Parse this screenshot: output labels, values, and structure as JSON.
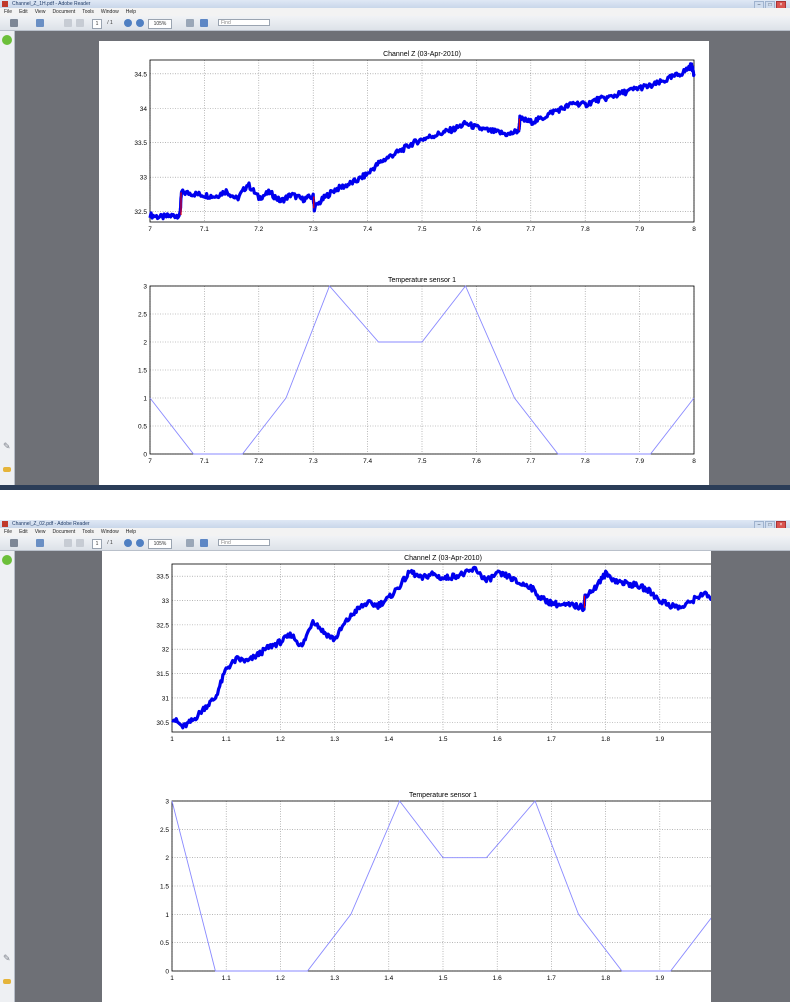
{
  "windows": [
    {
      "title": "Channel_Z_1H.pdf - Adobe Reader",
      "menu": [
        "File",
        "Edit",
        "View",
        "Document",
        "Tools",
        "Window",
        "Help"
      ],
      "toolbar": {
        "page_current": "1",
        "page_total": "/ 1",
        "zoom": "105%",
        "find_placeholder": "Find"
      }
    },
    {
      "title": "Channel_Z_02.pdf - Adobe Reader",
      "menu": [
        "File",
        "Edit",
        "View",
        "Document",
        "Tools",
        "Window",
        "Help"
      ],
      "toolbar": {
        "page_current": "1",
        "page_total": "/ 1",
        "zoom": "105%",
        "find_placeholder": "Find"
      }
    }
  ],
  "colors": {
    "signal": "#0000ee",
    "step": "#ee0000",
    "sensor": "#8a8aff",
    "grid": "#8c8c8c",
    "chrome": "#e6e9ee",
    "doc_bg": "#6e7076"
  },
  "chart_data": [
    {
      "type": "line",
      "title": "Channel Z  (03-Apr-2010)",
      "xlim": [
        7,
        8
      ],
      "ylim": [
        32.35,
        34.7
      ],
      "xticks": [
        "7",
        "7.1",
        "7.2",
        "7.3",
        "7.4",
        "7.5",
        "7.6",
        "7.7",
        "7.8",
        "7.9",
        "8"
      ],
      "yticks": [
        "32.5",
        "33",
        "33.5",
        "34",
        "34.5"
      ],
      "grid": true,
      "series": [
        {
          "x": [
            7.0,
            7.02,
            7.04,
            7.055,
            7.058,
            7.08,
            7.1,
            7.12,
            7.14,
            7.16,
            7.18,
            7.2,
            7.22,
            7.24,
            7.26,
            7.28,
            7.3,
            7.302,
            7.32,
            7.34,
            7.36,
            7.38,
            7.4,
            7.42,
            7.44,
            7.46,
            7.48,
            7.5,
            7.52,
            7.54,
            7.56,
            7.58,
            7.6,
            7.62,
            7.64,
            7.66,
            7.678,
            7.68,
            7.7,
            7.72,
            7.74,
            7.76,
            7.78,
            7.8,
            7.82,
            7.84,
            7.86,
            7.88,
            7.9,
            7.92,
            7.94,
            7.96,
            7.98,
            7.995,
            8.0
          ],
          "y": [
            32.45,
            32.42,
            32.44,
            32.45,
            32.78,
            32.76,
            32.74,
            32.72,
            32.8,
            32.68,
            32.9,
            32.7,
            32.78,
            32.65,
            32.75,
            32.68,
            32.72,
            32.55,
            32.7,
            32.82,
            32.88,
            32.95,
            33.05,
            33.2,
            33.3,
            33.38,
            33.48,
            33.55,
            33.6,
            33.65,
            33.7,
            33.78,
            33.72,
            33.68,
            33.65,
            33.62,
            33.68,
            33.85,
            33.8,
            33.85,
            33.95,
            34.0,
            34.08,
            34.05,
            34.12,
            34.15,
            34.2,
            34.25,
            34.3,
            34.32,
            34.38,
            34.45,
            34.52,
            34.62,
            34.5
          ]
        }
      ],
      "jumps": [
        {
          "x": 7.057,
          "y0": 32.45,
          "y1": 32.78
        },
        {
          "x": 7.301,
          "y0": 32.72,
          "y1": 32.55
        },
        {
          "x": 7.679,
          "y0": 33.68,
          "y1": 33.85
        }
      ]
    },
    {
      "type": "line",
      "title": "Temperature sensor 1",
      "xlim": [
        7,
        8
      ],
      "ylim": [
        0,
        3
      ],
      "xticks": [
        "7",
        "7.1",
        "7.2",
        "7.3",
        "7.4",
        "7.5",
        "7.6",
        "7.7",
        "7.8",
        "7.9",
        "8"
      ],
      "yticks": [
        "0",
        "0.5",
        "1",
        "1.5",
        "2",
        "2.5",
        "3"
      ],
      "grid": true,
      "series": [
        {
          "x": [
            7.0,
            7.08,
            7.17,
            7.25,
            7.33,
            7.42,
            7.5,
            7.58,
            7.67,
            7.75,
            7.83,
            7.92,
            8.0
          ],
          "y": [
            1,
            0,
            0,
            1,
            3,
            2,
            2,
            3,
            1,
            0,
            0,
            0,
            1
          ]
        }
      ]
    },
    {
      "type": "line",
      "title": "Channel Z  (03-Apr-2010)",
      "xlim": [
        1,
        2
      ],
      "ylim": [
        30.3,
        33.75
      ],
      "xticks": [
        "1",
        "1.1",
        "1.2",
        "1.3",
        "1.4",
        "1.5",
        "1.6",
        "1.7",
        "1.8",
        "1.9",
        "2"
      ],
      "yticks": [
        "30.5",
        "31",
        "31.5",
        "32",
        "32.5",
        "33",
        "33.5"
      ],
      "grid": true,
      "series": [
        {
          "x": [
            1.0,
            1.02,
            1.04,
            1.06,
            1.08,
            1.1,
            1.12,
            1.14,
            1.16,
            1.18,
            1.2,
            1.22,
            1.24,
            1.26,
            1.28,
            1.3,
            1.32,
            1.34,
            1.36,
            1.38,
            1.4,
            1.42,
            1.44,
            1.46,
            1.48,
            1.5,
            1.52,
            1.54,
            1.56,
            1.58,
            1.6,
            1.62,
            1.64,
            1.66,
            1.68,
            1.7,
            1.72,
            1.74,
            1.76,
            1.762,
            1.78,
            1.8,
            1.82,
            1.84,
            1.86,
            1.88,
            1.9,
            1.92,
            1.94,
            1.96,
            1.98,
            2.0
          ],
          "y": [
            30.6,
            30.4,
            30.55,
            30.8,
            31.0,
            31.6,
            31.8,
            31.75,
            31.9,
            32.05,
            32.15,
            32.3,
            32.05,
            32.6,
            32.35,
            32.2,
            32.55,
            32.8,
            32.95,
            32.9,
            33.05,
            33.3,
            33.6,
            33.45,
            33.55,
            33.45,
            33.5,
            33.55,
            33.65,
            33.4,
            33.55,
            33.5,
            33.35,
            33.3,
            33.05,
            32.95,
            32.9,
            32.9,
            32.85,
            33.1,
            33.25,
            33.55,
            33.4,
            33.35,
            33.3,
            33.2,
            33.0,
            32.9,
            32.85,
            33.0,
            33.15,
            33.0
          ]
        }
      ],
      "jumps": [
        {
          "x": 1.761,
          "y0": 32.85,
          "y1": 33.1
        }
      ]
    },
    {
      "type": "line",
      "title": "Temperature sensor 1",
      "xlim": [
        1,
        2
      ],
      "ylim": [
        0,
        3
      ],
      "xticks": [
        "1",
        "1.1",
        "1.2",
        "1.3",
        "1.4",
        "1.5",
        "1.6",
        "1.7",
        "1.8",
        "1.9",
        "2"
      ],
      "yticks": [
        "0",
        "0.5",
        "1",
        "1.5",
        "2",
        "2.5",
        "3"
      ],
      "grid": true,
      "series": [
        {
          "x": [
            1.0,
            1.08,
            1.17,
            1.25,
            1.33,
            1.42,
            1.5,
            1.58,
            1.67,
            1.75,
            1.83,
            1.92,
            2.0
          ],
          "y": [
            3,
            0,
            0,
            0,
            1,
            3,
            2,
            2,
            3,
            1,
            0,
            0,
            1
          ]
        }
      ]
    }
  ]
}
